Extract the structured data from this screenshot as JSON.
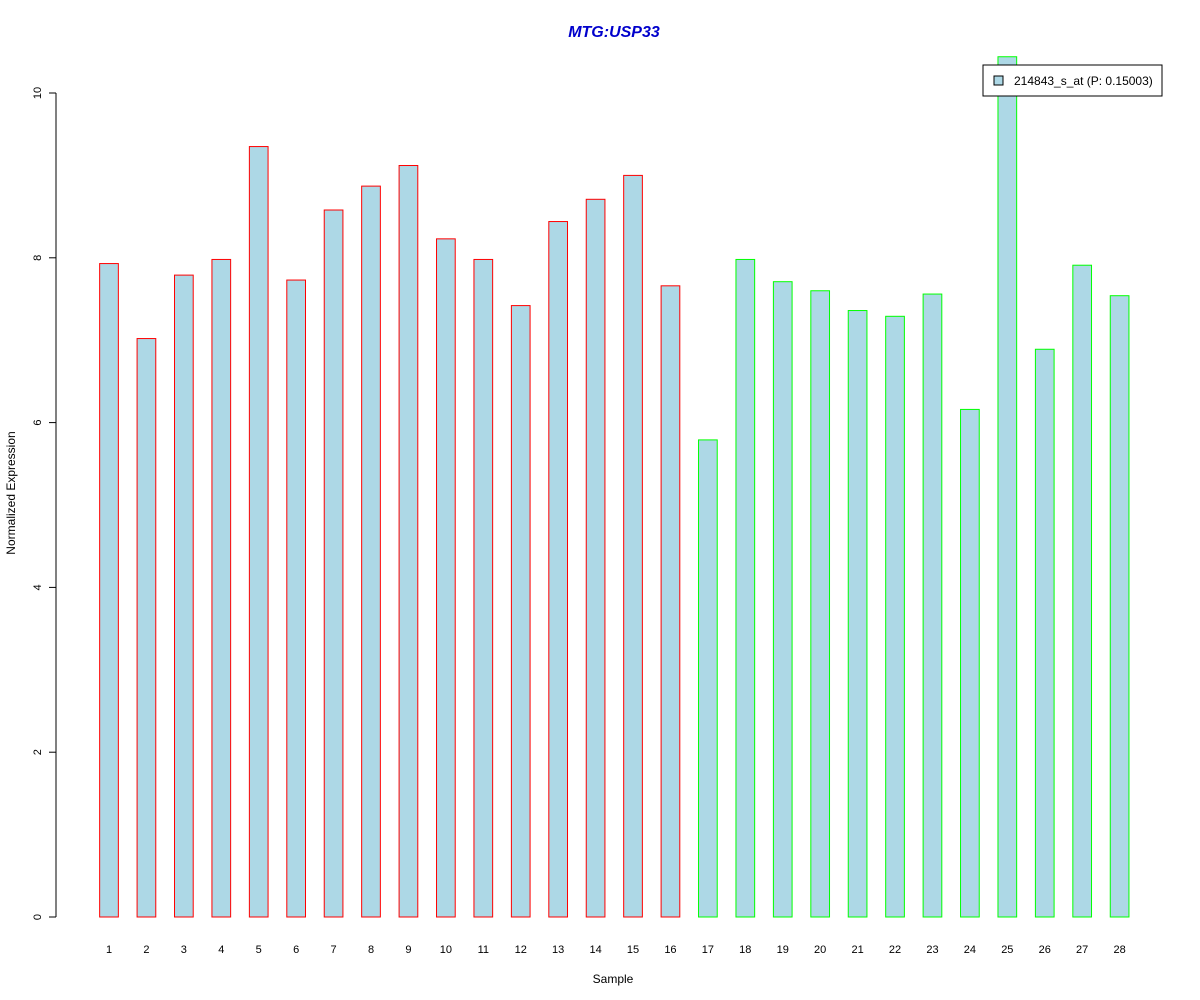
{
  "chart_data": {
    "type": "bar",
    "title": "MTG:USP33",
    "xlabel": "Sample",
    "ylabel": "Normalized Expression",
    "ylim": [
      0,
      10
    ],
    "yticks": [
      0,
      2,
      4,
      6,
      8,
      10
    ],
    "grid": false,
    "categories": [
      "1",
      "2",
      "3",
      "4",
      "5",
      "6",
      "7",
      "8",
      "9",
      "10",
      "11",
      "12",
      "13",
      "14",
      "15",
      "16",
      "17",
      "18",
      "19",
      "20",
      "21",
      "22",
      "23",
      "24",
      "25",
      "26",
      "27",
      "28"
    ],
    "series": [
      {
        "name": "214843_s_at (P: 0.15003)",
        "values": [
          7.93,
          7.02,
          7.79,
          7.98,
          9.35,
          7.73,
          8.58,
          8.87,
          9.12,
          8.23,
          7.98,
          7.42,
          8.44,
          8.71,
          9.0,
          7.66,
          5.79,
          7.98,
          7.71,
          7.6,
          7.36,
          7.29,
          7.56,
          6.16,
          10.44,
          6.89,
          7.91,
          7.54
        ],
        "fill": "#add8e6"
      }
    ],
    "groups": [
      {
        "samples": "1-16",
        "border_color": "#ff0000"
      },
      {
        "samples": "17-28",
        "border_color": "#00ff00"
      }
    ],
    "title_color": "#0000cc",
    "legend_position": "top-right"
  }
}
